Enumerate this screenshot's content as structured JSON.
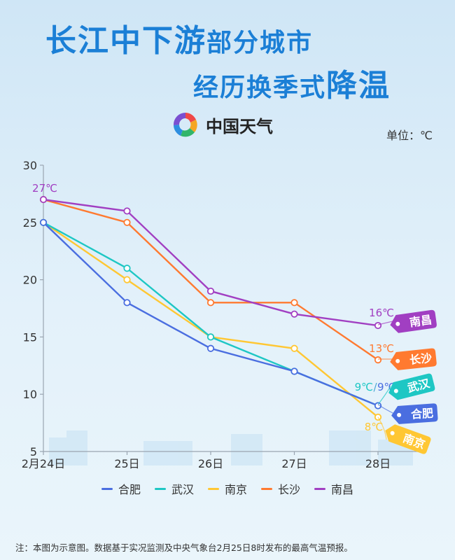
{
  "title": {
    "line1_big": "长江中下游",
    "line1_small": "部分城市",
    "line2_small": "经历换季式",
    "line2_big": "降温"
  },
  "logo": {
    "text": "中国天气",
    "icon": "china-weather-logo-icon"
  },
  "unit_label": "单位：℃",
  "footnote": "注：本图为示意图。数据基于实况监测及中央气象台2月25日8时发布的最高气温预报。",
  "colors": {
    "hefei": "#4a6ee0",
    "wuhan": "#1ec7c4",
    "nanjing": "#ffc733",
    "changsha": "#ff7a30",
    "nanchang": "#a13fc2",
    "axis": "#9aa5b1",
    "tick_text": "#333333"
  },
  "chart_data": {
    "type": "line",
    "categories": [
      "2月24日",
      "25日",
      "26日",
      "27日",
      "28日"
    ],
    "ylim": [
      5,
      30
    ],
    "yticks": [
      5,
      10,
      15,
      20,
      25,
      30
    ],
    "grid": false,
    "legend_position": "bottom",
    "series": [
      {
        "key": "hefei",
        "name": "合肥",
        "values": [
          25,
          18,
          14,
          12,
          9
        ],
        "end_label": "9℃",
        "tag": "合肥"
      },
      {
        "key": "wuhan",
        "name": "武汉",
        "values": [
          25,
          21,
          15,
          12,
          9
        ],
        "end_label": "9℃",
        "tag": "武汉"
      },
      {
        "key": "nanjing",
        "name": "南京",
        "values": [
          25,
          20,
          15,
          14,
          8
        ],
        "end_label": "8℃",
        "tag": "南京"
      },
      {
        "key": "changsha",
        "name": "长沙",
        "values": [
          27,
          25,
          18,
          18,
          13
        ],
        "end_label": "13℃",
        "tag": "长沙"
      },
      {
        "key": "nanchang",
        "name": "南昌",
        "values": [
          27,
          26,
          19,
          17,
          16
        ],
        "end_label": "16℃",
        "tag": "南昌"
      }
    ],
    "start_label": "27℃"
  }
}
